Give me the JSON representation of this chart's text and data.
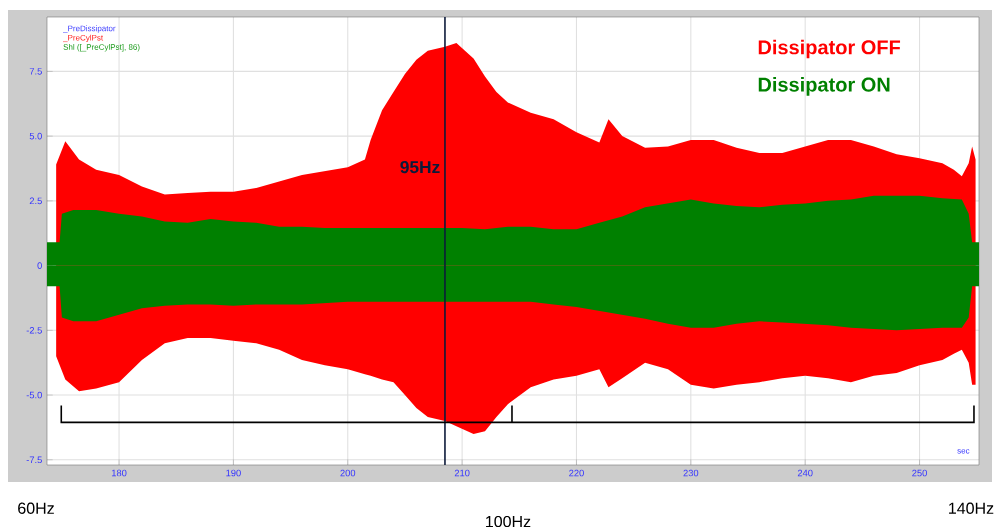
{
  "chart_data": {
    "type": "area",
    "xlabel": "sec",
    "xlim": [
      173.7,
      255.2
    ],
    "ylim": [
      -7.7,
      9.6
    ],
    "xticks": [
      180,
      190,
      200,
      210,
      220,
      230,
      240,
      250
    ],
    "yticks": [
      -7.5,
      {
        "value": -5,
        "label": "-5.0"
      },
      -2.5,
      0,
      2.5,
      {
        "value": 5,
        "label": "5.0"
      },
      7.5
    ],
    "grid": true,
    "legend": "top right",
    "series": [
      {
        "name": "Dissipator OFF",
        "color": "#ff0000",
        "x": [
          174.5,
          175.3,
          176.5,
          178,
          180,
          182,
          184,
          186,
          188,
          190,
          192,
          194,
          196,
          198,
          200,
          201.5,
          202,
          203,
          204,
          205,
          206,
          207,
          208.5,
          209.5,
          211,
          212,
          213,
          214,
          216,
          218,
          220,
          222,
          222.8,
          224,
          226,
          228,
          230,
          232,
          234,
          236,
          238,
          240,
          242,
          244,
          246,
          248,
          250,
          252,
          253,
          253.7,
          254.3,
          254.6,
          254.9
        ],
        "values": [
          3.9,
          4.8,
          4.1,
          3.7,
          3.5,
          3.05,
          2.75,
          2.8,
          2.85,
          2.85,
          3.0,
          3.25,
          3.5,
          3.65,
          3.8,
          4.1,
          4.85,
          6.0,
          6.7,
          7.4,
          7.95,
          8.3,
          8.45,
          8.6,
          8.0,
          7.3,
          6.7,
          6.3,
          5.9,
          5.65,
          5.15,
          4.75,
          5.65,
          5.0,
          4.55,
          4.6,
          4.85,
          4.85,
          4.55,
          4.35,
          4.35,
          4.6,
          4.85,
          4.85,
          4.6,
          4.3,
          4.15,
          3.95,
          3.7,
          3.45,
          3.95,
          4.6,
          4.1
        ]
      },
      {
        "color": "#ff0000",
        "x": [
          174.5,
          175.3,
          176.5,
          178,
          180,
          182,
          184,
          186,
          188,
          190,
          192,
          194,
          196,
          198,
          200,
          201.5,
          202,
          203,
          204,
          205,
          206,
          207,
          208.5,
          209.5,
          211,
          212,
          213,
          214,
          216,
          218,
          220,
          222,
          222.8,
          224,
          226,
          228,
          230,
          232,
          234,
          236,
          238,
          240,
          242,
          244,
          246,
          248,
          250,
          252,
          253,
          253.7,
          254.3,
          254.6,
          254.9
        ],
        "values": [
          -3.5,
          -4.4,
          -4.85,
          -4.75,
          -4.5,
          -3.65,
          -3.0,
          -2.8,
          -2.8,
          -2.9,
          -3.0,
          -3.25,
          -3.65,
          -3.85,
          -4.0,
          -4.2,
          -4.25,
          -4.4,
          -4.5,
          -5.0,
          -5.5,
          -5.85,
          -6.0,
          -6.2,
          -6.5,
          -6.4,
          -5.85,
          -5.35,
          -4.7,
          -4.4,
          -4.25,
          -4.0,
          -4.7,
          -4.35,
          -3.75,
          -4.0,
          -4.6,
          -4.75,
          -4.6,
          -4.5,
          -4.35,
          -4.25,
          -4.35,
          -4.5,
          -4.25,
          -4.15,
          -3.85,
          -3.65,
          -3.4,
          -3.25,
          -3.75,
          -4.6,
          -4.6
        ]
      },
      {
        "name": "Dissipator ON",
        "color": "#008000",
        "x": [
          173.7,
          174.8,
          175,
          176,
          178,
          180,
          182,
          184,
          186,
          188,
          190,
          192,
          194,
          196,
          198,
          200,
          202,
          204,
          206,
          208,
          210,
          212,
          214,
          216,
          218,
          220,
          222,
          224,
          226,
          228,
          230,
          232,
          234,
          236,
          238,
          240,
          242,
          244,
          246,
          248,
          250,
          252,
          253.7,
          254.3,
          254.6,
          255.2
        ],
        "values": [
          0.9,
          0.9,
          2.0,
          2.15,
          2.15,
          2.0,
          1.9,
          1.7,
          1.65,
          1.8,
          1.7,
          1.65,
          1.5,
          1.5,
          1.45,
          1.45,
          1.45,
          1.45,
          1.45,
          1.45,
          1.45,
          1.4,
          1.5,
          1.5,
          1.4,
          1.4,
          1.65,
          1.9,
          2.25,
          2.4,
          2.55,
          2.4,
          2.3,
          2.25,
          2.35,
          2.4,
          2.5,
          2.55,
          2.7,
          2.7,
          2.7,
          2.6,
          2.55,
          2.0,
          0.9,
          0.9
        ]
      },
      {
        "color": "#008000",
        "x": [
          173.7,
          174.8,
          175,
          176,
          178,
          180,
          182,
          184,
          186,
          188,
          190,
          192,
          194,
          196,
          198,
          200,
          202,
          204,
          206,
          208,
          210,
          212,
          214,
          216,
          218,
          220,
          222,
          224,
          226,
          228,
          230,
          232,
          234,
          236,
          238,
          240,
          242,
          244,
          246,
          248,
          250,
          252,
          253.7,
          254.3,
          254.6,
          255.2
        ],
        "values": [
          -0.8,
          -0.8,
          -2.0,
          -2.15,
          -2.15,
          -1.9,
          -1.65,
          -1.55,
          -1.5,
          -1.5,
          -1.55,
          -1.5,
          -1.5,
          -1.5,
          -1.45,
          -1.4,
          -1.4,
          -1.4,
          -1.4,
          -1.4,
          -1.4,
          -1.4,
          -1.4,
          -1.4,
          -1.5,
          -1.6,
          -1.75,
          -1.9,
          -2.05,
          -2.25,
          -2.4,
          -2.4,
          -2.25,
          -2.15,
          -2.2,
          -2.25,
          -2.3,
          -2.4,
          -2.45,
          -2.5,
          -2.45,
          -2.4,
          -2.4,
          -2.0,
          -0.8,
          -0.8
        ]
      }
    ],
    "ref_lines": [
      {
        "axis": "x",
        "value": 208.5,
        "label": "95Hz",
        "color": "#0d1a3a"
      }
    ],
    "annotations": [
      "_PreDissipator",
      "_PreCylPst",
      "Shl ([_PreCylPst], 86)",
      "60Hz",
      "100Hz",
      "140Hz"
    ]
  }
}
